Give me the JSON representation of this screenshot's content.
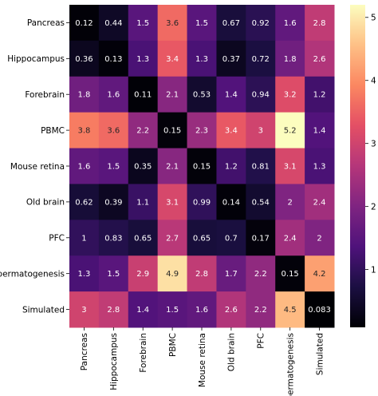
{
  "chart_data": {
    "type": "heatmap",
    "title": "",
    "xlabel": "",
    "ylabel": "",
    "rows": [
      "Pancreas",
      "Hippocampus",
      "Forebrain",
      "PBMC",
      "Mouse retina",
      "Old brain",
      "PFC",
      "Spermatogenesis",
      "Simulated"
    ],
    "columns": [
      "Pancreas",
      "Hippocampus",
      "Forebrain",
      "PBMC",
      "Mouse retina",
      "Old brain",
      "PFC",
      "Spermatogenesis",
      "Simulated"
    ],
    "values": [
      [
        0.12,
        0.44,
        1.5,
        3.6,
        1.5,
        0.67,
        0.92,
        1.6,
        2.8
      ],
      [
        0.36,
        0.13,
        1.3,
        3.4,
        1.3,
        0.37,
        0.72,
        1.8,
        2.6
      ],
      [
        1.8,
        1.6,
        0.11,
        2.1,
        0.53,
        1.4,
        0.94,
        3.2,
        1.2
      ],
      [
        3.8,
        3.6,
        2.2,
        0.15,
        2.3,
        3.4,
        3,
        5.2,
        1.4
      ],
      [
        1.6,
        1.5,
        0.35,
        2.1,
        0.15,
        1.2,
        0.81,
        3.1,
        1.3
      ],
      [
        0.62,
        0.39,
        1.1,
        3.1,
        0.99,
        0.14,
        0.54,
        2,
        2.4
      ],
      [
        1,
        0.83,
        0.65,
        2.7,
        0.65,
        0.7,
        0.17,
        2.4,
        2
      ],
      [
        1.3,
        1.5,
        2.9,
        4.9,
        2.8,
        1.7,
        2.2,
        0.15,
        4.2
      ],
      [
        3,
        2.8,
        1.4,
        1.5,
        1.6,
        2.6,
        2.2,
        4.5,
        0.083
      ]
    ],
    "colormap": "magma",
    "vmin": 0.083,
    "vmax": 5.2,
    "colorbar_ticks": [
      1,
      2,
      3,
      4,
      5
    ],
    "annotated": true,
    "grid": false
  }
}
